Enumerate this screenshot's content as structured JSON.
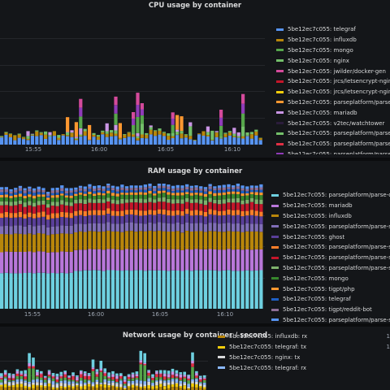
{
  "panels": [
    {
      "title": "CPU usage by container",
      "x_ticks": [
        "15:55",
        "16:00",
        "16:05",
        "16:10"
      ],
      "legend": [
        {
          "label": "5be12ec7c055: telegraf",
          "color": "#5794f2"
        },
        {
          "label": "5be12ec7c055: influxdb",
          "color": "#b8860b"
        },
        {
          "label": "5be12ec7c055: mongo",
          "color": "#56a64b"
        },
        {
          "label": "5be12ec7c055: nginx",
          "color": "#73bf69"
        },
        {
          "label": "5be12ec7c055: jwilder/docker-gen",
          "color": "#d44a9b"
        },
        {
          "label": "5be12ec7c055: jrcs/letsencrypt-nginx-pro",
          "color": "#c4162a"
        },
        {
          "label": "5be12ec7c055: jrcs/letsencrypt-nginx-pro",
          "color": "#f2cc0c"
        },
        {
          "label": "5be12ec7c055: parseplatform/parse-ser",
          "color": "#ff9830"
        },
        {
          "label": "5be12ec7c055: mariadb",
          "color": "#ca95e5"
        },
        {
          "label": "5be12ec7c055: v2tec/watchtower",
          "color": "#2b1d3b"
        },
        {
          "label": "5be12ec7c055: parseplatform/parse-ser",
          "color": "#73bf69"
        },
        {
          "label": "5be12ec7c055: parseplatform/parse-ser",
          "color": "#e02f44"
        },
        {
          "label": "5be12ec7c055: parseplatform/parse-ser",
          "color": "#8f3bb8"
        }
      ]
    },
    {
      "title": "RAM usage by container",
      "x_ticks": [
        "15:55",
        "16:00",
        "16:05",
        "16:10"
      ],
      "legend": [
        {
          "label": "5be12ec7c055: parseplatform/parse-dashb",
          "color": "#6ed0e0"
        },
        {
          "label": "5be12ec7c055: mariadb",
          "color": "#b877d9"
        },
        {
          "label": "5be12ec7c055: influxdb",
          "color": "#b8860b"
        },
        {
          "label": "5be12ec7c055: parseplatform/parse-server",
          "color": "#806eb7"
        },
        {
          "label": "5be12ec7c055: ghost",
          "color": "#5a3f99"
        },
        {
          "label": "5be12ec7c055: parseplatform/parse-server",
          "color": "#ff7f2a"
        },
        {
          "label": "5be12ec7c055: parseplatform/parse-server",
          "color": "#c4162a"
        },
        {
          "label": "5be12ec7c055: parseplatform/parse-server",
          "color": "#7eb26d"
        },
        {
          "label": "5be12ec7c055: mongo",
          "color": "#37872d"
        },
        {
          "label": "5be12ec7c055: tigpt/php",
          "color": "#ff9830"
        },
        {
          "label": "5be12ec7c055: telegraf",
          "color": "#1f60c4"
        },
        {
          "label": "5be12ec7c055: tigpt/reddit-bot",
          "color": "#8e6e96"
        },
        {
          "label": "5be12ec7c055: parseplatform/parse-server",
          "color": "#5794f2"
        }
      ]
    },
    {
      "title": "Network usage by container / second",
      "x_ticks": [],
      "legend": [
        {
          "label": "5be12ec7c055: influxdb: rx",
          "color": "#b8860b",
          "value": "1"
        },
        {
          "label": "5be12ec7c055: telegraf: tx",
          "color": "#f2cc0c",
          "value": "1"
        },
        {
          "label": "5be12ec7c055: nginx: tx",
          "color": "#d8d9da",
          "value": ""
        },
        {
          "label": "5be12ec7c055: telegraf: rx",
          "color": "#8ab8ff",
          "value": ""
        }
      ]
    }
  ]
}
